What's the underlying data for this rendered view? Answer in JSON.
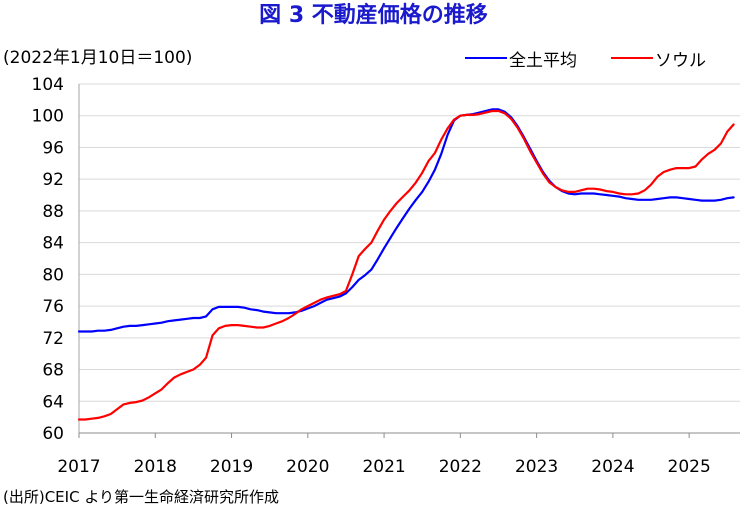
{
  "chart_data": {
    "type": "line",
    "title": "図 3 不動産価格の推移",
    "subtitle": "(2022年1月10日＝100)",
    "xlabel": "",
    "ylabel": "",
    "xlim": [
      "2017-01",
      "2025-09"
    ],
    "x_ticks": [
      "2017",
      "2018",
      "2019",
      "2020",
      "2021",
      "2022",
      "2023",
      "2024",
      "2025"
    ],
    "ylim": [
      60,
      104
    ],
    "y_ticks": [
      60,
      64,
      68,
      72,
      76,
      80,
      84,
      88,
      92,
      96,
      100,
      104
    ],
    "grid": "horizontal",
    "legend": "top-right",
    "x": [
      "2017-01",
      "2017-02",
      "2017-03",
      "2017-04",
      "2017-05",
      "2017-06",
      "2017-07",
      "2017-08",
      "2017-09",
      "2017-10",
      "2017-11",
      "2017-12",
      "2018-01",
      "2018-02",
      "2018-03",
      "2018-04",
      "2018-05",
      "2018-06",
      "2018-07",
      "2018-08",
      "2018-09",
      "2018-10",
      "2018-11",
      "2018-12",
      "2019-01",
      "2019-02",
      "2019-03",
      "2019-04",
      "2019-05",
      "2019-06",
      "2019-07",
      "2019-08",
      "2019-09",
      "2019-10",
      "2019-11",
      "2019-12",
      "2020-01",
      "2020-02",
      "2020-03",
      "2020-04",
      "2020-05",
      "2020-06",
      "2020-07",
      "2020-08",
      "2020-09",
      "2020-10",
      "2020-11",
      "2020-12",
      "2021-01",
      "2021-02",
      "2021-03",
      "2021-04",
      "2021-05",
      "2021-06",
      "2021-07",
      "2021-08",
      "2021-09",
      "2021-10",
      "2021-11",
      "2021-12",
      "2022-01",
      "2022-02",
      "2022-03",
      "2022-04",
      "2022-05",
      "2022-06",
      "2022-07",
      "2022-08",
      "2022-09",
      "2022-10",
      "2022-11",
      "2022-12",
      "2023-01",
      "2023-02",
      "2023-03",
      "2023-04",
      "2023-05",
      "2023-06",
      "2023-07",
      "2023-08",
      "2023-09",
      "2023-10",
      "2023-11",
      "2023-12",
      "2024-01",
      "2024-02",
      "2024-03",
      "2024-04",
      "2024-05",
      "2024-06",
      "2024-07",
      "2024-08",
      "2024-09",
      "2024-10",
      "2024-11",
      "2024-12",
      "2025-01",
      "2025-02",
      "2025-03",
      "2025-04",
      "2025-05",
      "2025-06",
      "2025-07",
      "2025-08"
    ],
    "series": [
      {
        "name": "全土平均",
        "color": "#0000ff",
        "values": [
          72.8,
          72.8,
          72.8,
          72.9,
          72.9,
          73.0,
          73.2,
          73.4,
          73.5,
          73.5,
          73.6,
          73.7,
          73.8,
          73.9,
          74.1,
          74.2,
          74.3,
          74.4,
          74.5,
          74.5,
          74.7,
          75.6,
          75.9,
          75.9,
          75.9,
          75.9,
          75.8,
          75.6,
          75.5,
          75.3,
          75.2,
          75.1,
          75.1,
          75.1,
          75.2,
          75.4,
          75.7,
          76.0,
          76.4,
          76.8,
          77.0,
          77.2,
          77.6,
          78.4,
          79.3,
          79.9,
          80.6,
          81.9,
          83.3,
          84.6,
          85.9,
          87.1,
          88.3,
          89.4,
          90.4,
          91.7,
          93.2,
          95.2,
          97.6,
          99.4,
          100.0,
          100.1,
          100.2,
          100.4,
          100.6,
          100.8,
          100.8,
          100.5,
          99.8,
          98.7,
          97.3,
          95.8,
          94.3,
          92.9,
          91.8,
          91.0,
          90.5,
          90.2,
          90.1,
          90.2,
          90.2,
          90.2,
          90.1,
          90.0,
          89.9,
          89.8,
          89.6,
          89.5,
          89.4,
          89.4,
          89.4,
          89.5,
          89.6,
          89.7,
          89.7,
          89.6,
          89.5,
          89.4,
          89.3,
          89.3,
          89.3,
          89.4,
          89.6,
          89.7
        ]
      },
      {
        "name": "ソウル",
        "color": "#ff0000",
        "values": [
          61.7,
          61.7,
          61.8,
          61.9,
          62.1,
          62.4,
          63.0,
          63.6,
          63.8,
          63.9,
          64.1,
          64.5,
          65.0,
          65.5,
          66.3,
          67.0,
          67.4,
          67.7,
          68.0,
          68.6,
          69.5,
          72.3,
          73.2,
          73.5,
          73.6,
          73.6,
          73.5,
          73.4,
          73.3,
          73.3,
          73.5,
          73.8,
          74.1,
          74.5,
          75.0,
          75.6,
          76.0,
          76.4,
          76.8,
          77.1,
          77.3,
          77.5,
          77.9,
          80.0,
          82.3,
          83.2,
          84.0,
          85.5,
          86.9,
          88.0,
          89.0,
          89.8,
          90.6,
          91.6,
          92.8,
          94.3,
          95.3,
          97.0,
          98.4,
          99.5,
          100.0,
          100.1,
          100.1,
          100.2,
          100.4,
          100.6,
          100.6,
          100.3,
          99.6,
          98.5,
          97.1,
          95.5,
          94.1,
          92.7,
          91.6,
          91.0,
          90.6,
          90.4,
          90.4,
          90.6,
          90.8,
          90.8,
          90.7,
          90.5,
          90.4,
          90.2,
          90.1,
          90.1,
          90.2,
          90.6,
          91.3,
          92.3,
          92.9,
          93.2,
          93.4,
          93.4,
          93.4,
          93.6,
          94.5,
          95.2,
          95.7,
          96.5,
          98.0,
          98.9
        ]
      }
    ]
  },
  "source": "(出所)CEIC より第一生命経済研究所作成"
}
